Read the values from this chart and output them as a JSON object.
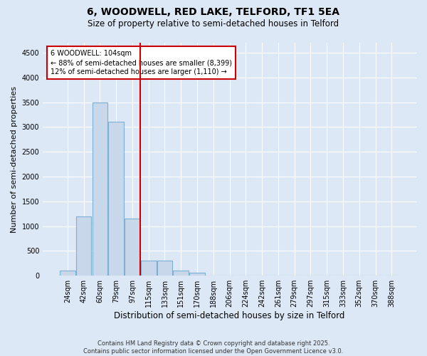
{
  "title": "6, WOODWELL, RED LAKE, TELFORD, TF1 5EA",
  "subtitle": "Size of property relative to semi-detached houses in Telford",
  "xlabel": "Distribution of semi-detached houses by size in Telford",
  "ylabel": "Number of semi-detached properties",
  "footnote": "Contains HM Land Registry data © Crown copyright and database right 2025.\nContains public sector information licensed under the Open Government Licence v3.0.",
  "categories": [
    "24sqm",
    "42sqm",
    "60sqm",
    "79sqm",
    "97sqm",
    "115sqm",
    "133sqm",
    "151sqm",
    "170sqm",
    "188sqm",
    "206sqm",
    "224sqm",
    "242sqm",
    "261sqm",
    "279sqm",
    "297sqm",
    "315sqm",
    "333sqm",
    "352sqm",
    "370sqm",
    "388sqm"
  ],
  "values": [
    100,
    1200,
    3500,
    3100,
    1150,
    300,
    300,
    100,
    60,
    5,
    0,
    0,
    0,
    0,
    0,
    0,
    0,
    0,
    0,
    0,
    0
  ],
  "bar_color": "#c8d8ea",
  "bar_edge_color": "#7bafd4",
  "vline_x": 4.5,
  "annotation_title": "6 WOODWELL: 104sqm",
  "annotation_line1": "← 88% of semi-detached houses are smaller (8,399)",
  "annotation_line2": "12% of semi-detached houses are larger (1,110) →",
  "ylim": [
    0,
    4700
  ],
  "yticks": [
    0,
    500,
    1000,
    1500,
    2000,
    2500,
    3000,
    3500,
    4000,
    4500
  ],
  "fig_bg": "#dce8f5",
  "plot_bg": "#dce8f5",
  "vline_color": "#cc0000",
  "box_edge_color": "#cc0000",
  "box_face_color": "#ffffff",
  "grid_color": "#ffffff",
  "title_fontsize": 10,
  "subtitle_fontsize": 8.5,
  "ylabel_fontsize": 8,
  "xlabel_fontsize": 8.5,
  "tick_fontsize": 7,
  "footnote_fontsize": 6
}
